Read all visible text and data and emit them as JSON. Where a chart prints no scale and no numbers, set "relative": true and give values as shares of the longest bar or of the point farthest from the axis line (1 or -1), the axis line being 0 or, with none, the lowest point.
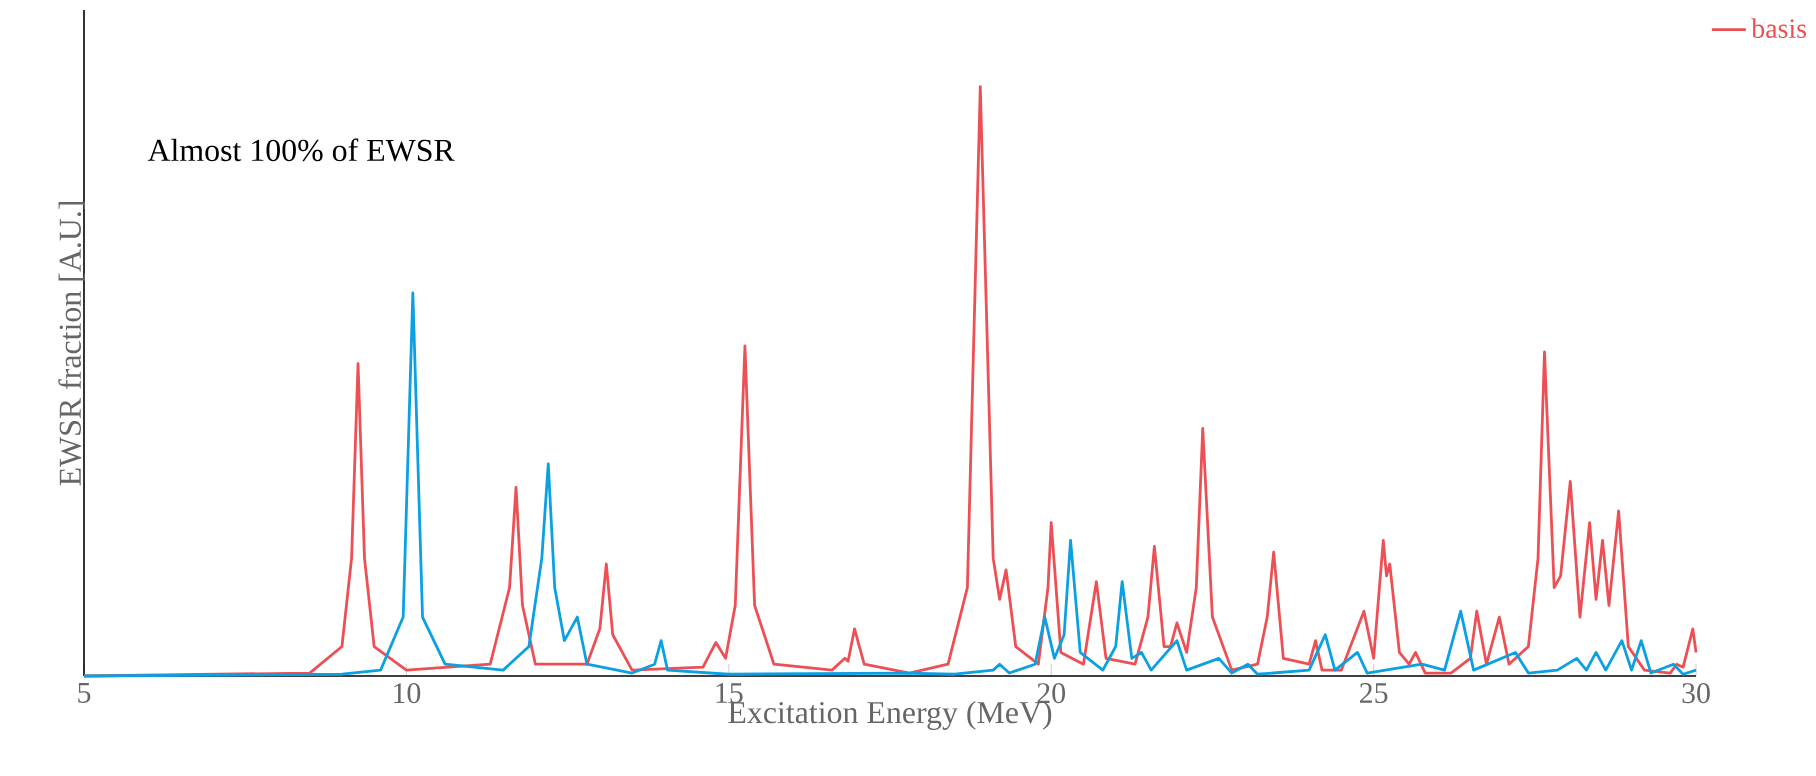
{
  "chart_data": {
    "type": "line",
    "xlabel": "Excitation Energy (MeV)",
    "ylabel": "EWSR fraction [A.U.]",
    "annotations": [
      "Almost 100% of EWSR"
    ],
    "relative": true,
    "xlim": [
      5,
      30
    ],
    "xticks": [
      5,
      10,
      15,
      20,
      25,
      30
    ],
    "grid": false,
    "legend": "top right",
    "marker": "none",
    "line_style": "solid",
    "series": [
      {
        "name": "basis",
        "color": "#ec5055",
        "x": [
          5,
          8.5,
          9.0,
          9.15,
          9.25,
          9.35,
          9.5,
          10.0,
          11.3,
          11.6,
          11.7,
          11.8,
          12.0,
          12.8,
          13.0,
          13.1,
          13.2,
          13.5,
          14.6,
          14.8,
          14.95,
          15.1,
          15.25,
          15.4,
          15.7,
          16.6,
          16.8,
          16.85,
          16.95,
          17.1,
          17.8,
          18.4,
          18.7,
          18.9,
          19.1,
          19.2,
          19.3,
          19.45,
          19.8,
          19.95,
          20.0,
          20.15,
          20.5,
          20.7,
          20.85,
          21.3,
          21.5,
          21.6,
          21.75,
          21.85,
          21.95,
          22.1,
          22.25,
          22.35,
          22.5,
          22.8,
          23.2,
          23.35,
          23.45,
          23.6,
          24.0,
          24.1,
          24.2,
          24.5,
          24.85,
          25.0,
          25.15,
          25.2,
          25.25,
          25.4,
          25.55,
          25.65,
          25.8,
          26.2,
          26.5,
          26.6,
          26.75,
          26.95,
          27.1,
          27.4,
          27.55,
          27.65,
          27.8,
          27.9,
          28.05,
          28.2,
          28.35,
          28.45,
          28.55,
          28.65,
          28.8,
          28.95,
          29.2,
          29.6,
          29.7,
          29.8,
          29.95,
          30
        ],
        "values": [
          0,
          0.005,
          0.05,
          0.2,
          0.53,
          0.2,
          0.05,
          0.01,
          0.02,
          0.15,
          0.32,
          0.12,
          0.02,
          0.02,
          0.08,
          0.19,
          0.07,
          0.01,
          0.015,
          0.057,
          0.03,
          0.12,
          0.56,
          0.12,
          0.02,
          0.01,
          0.03,
          0.025,
          0.08,
          0.02,
          0.005,
          0.02,
          0.15,
          1.0,
          0.2,
          0.13,
          0.18,
          0.05,
          0.02,
          0.15,
          0.26,
          0.04,
          0.02,
          0.16,
          0.03,
          0.02,
          0.1,
          0.22,
          0.05,
          0.05,
          0.09,
          0.04,
          0.15,
          0.42,
          0.1,
          0.01,
          0.02,
          0.1,
          0.21,
          0.03,
          0.02,
          0.06,
          0.01,
          0.01,
          0.11,
          0.03,
          0.23,
          0.17,
          0.19,
          0.04,
          0.02,
          0.04,
          0.005,
          0.005,
          0.03,
          0.11,
          0.02,
          0.1,
          0.02,
          0.05,
          0.2,
          0.55,
          0.15,
          0.17,
          0.33,
          0.1,
          0.26,
          0.13,
          0.23,
          0.12,
          0.28,
          0.05,
          0.01,
          0.005,
          0.02,
          0.015,
          0.08,
          0.04
        ]
      },
      {
        "color": "#0aa0e2",
        "x": [
          5,
          9.0,
          9.6,
          9.95,
          10.1,
          10.25,
          10.6,
          11.5,
          11.9,
          12.1,
          12.2,
          12.3,
          12.45,
          12.65,
          12.8,
          13.5,
          13.85,
          13.95,
          14.05,
          15,
          17.75,
          18.5,
          19.1,
          19.2,
          19.35,
          19.75,
          19.9,
          20.05,
          20.2,
          20.3,
          20.45,
          20.8,
          21.0,
          21.1,
          21.25,
          21.4,
          21.55,
          21.95,
          22.1,
          22.6,
          22.8,
          23.05,
          23.2,
          24.0,
          24.25,
          24.4,
          24.75,
          24.9,
          25.75,
          26.1,
          26.35,
          26.55,
          27.2,
          27.4,
          27.85,
          28.15,
          28.3,
          28.45,
          28.6,
          28.85,
          29.0,
          29.15,
          29.3,
          29.65,
          29.8,
          30
        ],
        "values": [
          0,
          0.003,
          0.01,
          0.1,
          0.65,
          0.1,
          0.02,
          0.01,
          0.05,
          0.2,
          0.36,
          0.15,
          0.06,
          0.1,
          0.02,
          0.005,
          0.02,
          0.06,
          0.01,
          0.003,
          0.005,
          0.003,
          0.01,
          0.02,
          0.005,
          0.02,
          0.1,
          0.03,
          0.07,
          0.23,
          0.04,
          0.01,
          0.05,
          0.16,
          0.03,
          0.04,
          0.01,
          0.06,
          0.01,
          0.03,
          0.005,
          0.02,
          0.003,
          0.01,
          0.07,
          0.01,
          0.04,
          0.005,
          0.02,
          0.01,
          0.11,
          0.01,
          0.04,
          0.005,
          0.01,
          0.03,
          0.01,
          0.04,
          0.01,
          0.06,
          0.01,
          0.06,
          0.005,
          0.02,
          0.003,
          0.01
        ]
      }
    ]
  }
}
